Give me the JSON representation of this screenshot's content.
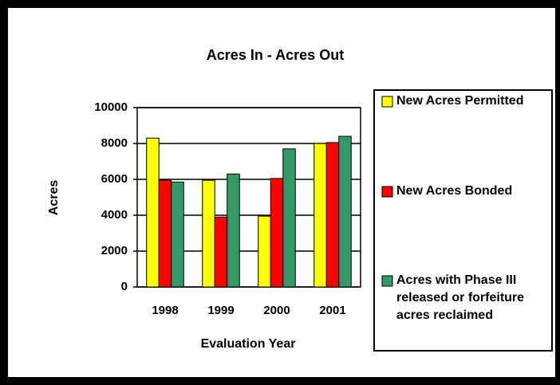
{
  "chart_data": {
    "type": "bar",
    "title": "Acres In - Acres Out",
    "x_label": "Evaluation Year",
    "y_label": "Acres",
    "categories": [
      "1998",
      "1999",
      "2000",
      "2001"
    ],
    "series": [
      {
        "name": "New Acres Permitted",
        "color": "#ffff00",
        "values": [
          8300,
          5950,
          3950,
          8000
        ]
      },
      {
        "name": "New Acres Bonded",
        "color": "#ff0000",
        "values": [
          5950,
          3900,
          6050,
          8050
        ]
      },
      {
        "name": "Acres with Phase III released or forfeiture acres reclaimed",
        "color": "#339966",
        "values": [
          5850,
          6300,
          7700,
          8400
        ]
      }
    ],
    "ylim": [
      0,
      10000
    ],
    "yticks": [
      0,
      2000,
      4000,
      6000,
      8000,
      10000
    ],
    "grid": true,
    "legend": "right"
  }
}
